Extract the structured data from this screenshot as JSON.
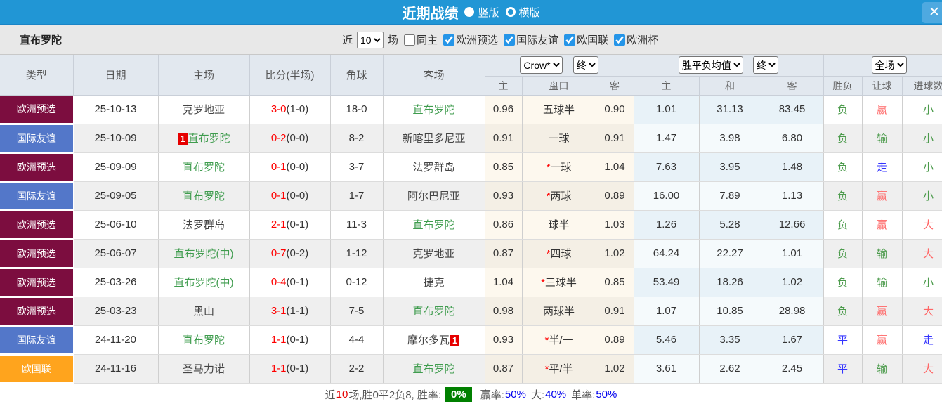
{
  "palette": {
    "titlebar_bg": "#2196D5",
    "type_colors": {
      "欧洲预选": "#7C0D3F",
      "国际友谊": "#5377C9",
      "欧国联": "#FFA41D"
    },
    "team_green": "#3F9C4E",
    "score_red": "#FF0000",
    "result_red": "#FF6666",
    "result_green": "#4C9B4C",
    "result_blue": "#3434FF",
    "rate_badge_bg": "#008000",
    "link_blue": "#0000EE"
  },
  "titlebar": {
    "title": "近期战绩",
    "options": [
      {
        "label": "竖版",
        "selected": true
      },
      {
        "label": "横版",
        "selected": false
      }
    ],
    "close_label": "✕"
  },
  "filterbar": {
    "team": "直布罗陀",
    "near_label": "近",
    "count_value": "10",
    "games_label": "场",
    "same_home": {
      "label": "同主",
      "checked": false
    },
    "leagues": [
      {
        "label": "欧洲预选",
        "checked": true
      },
      {
        "label": "国际友谊",
        "checked": true
      },
      {
        "label": "欧国联",
        "checked": true
      },
      {
        "label": "欧洲杯",
        "checked": true
      }
    ]
  },
  "table": {
    "static_headers": [
      "类型",
      "日期",
      "主场",
      "比分(半场)",
      "角球",
      "客场"
    ],
    "controls": {
      "odds_source": "Crow*",
      "odds_state": "终",
      "mean_source": "胜平负均值",
      "mean_state": "终",
      "scope": "全场"
    },
    "odds_sub_headers": [
      "主",
      "盘口",
      "客"
    ],
    "mean_sub_headers": [
      "主",
      "和",
      "客"
    ],
    "result_sub_headers": [
      "胜负",
      "让球",
      "进球数"
    ],
    "rows": [
      {
        "type": "欧洲预选",
        "date": "25-10-13",
        "home": "克罗地亚",
        "home_green": false,
        "score": "3-0",
        "half": "(1-0)",
        "corner": "18-0",
        "away": "直布罗陀",
        "away_green": true,
        "odds": [
          "0.96",
          "五球半",
          "0.90"
        ],
        "mean": [
          "1.01",
          "31.13",
          "83.45"
        ],
        "results": [
          "负",
          "赢",
          "小"
        ]
      },
      {
        "type": "国际友谊",
        "date": "25-10-09",
        "home": "直布罗陀",
        "home_green": true,
        "home_badge": "1",
        "score": "0-2",
        "half": "(0-0)",
        "corner": "8-2",
        "away": "新喀里多尼亚",
        "away_green": false,
        "odds": [
          "0.91",
          "一球",
          "0.91"
        ],
        "mean": [
          "1.47",
          "3.98",
          "6.80"
        ],
        "results": [
          "负",
          "输",
          "小"
        ]
      },
      {
        "type": "欧洲预选",
        "date": "25-09-09",
        "home": "直布罗陀",
        "home_green": true,
        "score": "0-1",
        "half": "(0-0)",
        "corner": "3-7",
        "away": "法罗群岛",
        "away_green": false,
        "odds": [
          "0.85",
          "*一球",
          "1.04"
        ],
        "mean": [
          "7.63",
          "3.95",
          "1.48"
        ],
        "results": [
          "负",
          "走",
          "小"
        ]
      },
      {
        "type": "国际友谊",
        "date": "25-09-05",
        "home": "直布罗陀",
        "home_green": true,
        "score": "0-1",
        "half": "(0-0)",
        "corner": "1-7",
        "away": "阿尔巴尼亚",
        "away_green": false,
        "odds": [
          "0.93",
          "*两球",
          "0.89"
        ],
        "mean": [
          "16.00",
          "7.89",
          "1.13"
        ],
        "results": [
          "负",
          "赢",
          "小"
        ]
      },
      {
        "type": "欧洲预选",
        "date": "25-06-10",
        "home": "法罗群岛",
        "home_green": false,
        "score": "2-1",
        "half": "(0-1)",
        "corner": "11-3",
        "away": "直布罗陀",
        "away_green": true,
        "odds": [
          "0.86",
          "球半",
          "1.03"
        ],
        "mean": [
          "1.26",
          "5.28",
          "12.66"
        ],
        "results": [
          "负",
          "赢",
          "大"
        ]
      },
      {
        "type": "欧洲预选",
        "date": "25-06-07",
        "home": "直布罗陀(中)",
        "home_green": true,
        "score": "0-7",
        "half": "(0-2)",
        "corner": "1-12",
        "away": "克罗地亚",
        "away_green": false,
        "odds": [
          "0.87",
          "*四球",
          "1.02"
        ],
        "mean": [
          "64.24",
          "22.27",
          "1.01"
        ],
        "results": [
          "负",
          "输",
          "大"
        ]
      },
      {
        "type": "欧洲预选",
        "date": "25-03-26",
        "home": "直布罗陀(中)",
        "home_green": true,
        "score": "0-4",
        "half": "(0-1)",
        "corner": "0-12",
        "away": "捷克",
        "away_green": false,
        "odds": [
          "1.04",
          "*三球半",
          "0.85"
        ],
        "mean": [
          "53.49",
          "18.26",
          "1.02"
        ],
        "results": [
          "负",
          "输",
          "小"
        ]
      },
      {
        "type": "欧洲预选",
        "date": "25-03-23",
        "home": "黑山",
        "home_green": false,
        "score": "3-1",
        "half": "(1-1)",
        "corner": "7-5",
        "away": "直布罗陀",
        "away_green": true,
        "odds": [
          "0.98",
          "两球半",
          "0.91"
        ],
        "mean": [
          "1.07",
          "10.85",
          "28.98"
        ],
        "results": [
          "负",
          "赢",
          "大"
        ]
      },
      {
        "type": "国际友谊",
        "date": "24-11-20",
        "home": "直布罗陀",
        "home_green": true,
        "score": "1-1",
        "half": "(0-1)",
        "corner": "4-4",
        "away": "摩尔多瓦",
        "away_green": false,
        "away_badge": "1",
        "odds": [
          "0.93",
          "*半/一",
          "0.89"
        ],
        "mean": [
          "5.46",
          "3.35",
          "1.67"
        ],
        "results": [
          "平",
          "赢",
          "走"
        ]
      },
      {
        "type": "欧国联",
        "date": "24-11-16",
        "home": "圣马力诺",
        "home_green": false,
        "score": "1-1",
        "half": "(0-1)",
        "corner": "2-2",
        "away": "直布罗陀",
        "away_green": true,
        "odds": [
          "0.87",
          "*平/半",
          "1.02"
        ],
        "mean": [
          "3.61",
          "2.62",
          "2.45"
        ],
        "results": [
          "平",
          "输",
          "大"
        ]
      }
    ]
  },
  "footer": {
    "near_label": "近",
    "count": "10",
    "summary": "场,胜0平2负8, 胜率:",
    "win_rate": "0%",
    "handicap_label": "赢率:",
    "handicap_rate": "50%",
    "big_label": "大:",
    "big_rate": "40%",
    "single_label": "单率:",
    "single_rate": "50%"
  }
}
